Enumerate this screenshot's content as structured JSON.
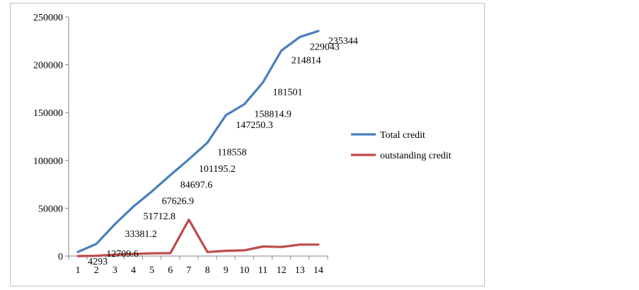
{
  "chart_data": {
    "type": "line",
    "title": "",
    "xlabel": "",
    "ylabel": "",
    "x": [
      "1",
      "2",
      "3",
      "4",
      "5",
      "6",
      "7",
      "8",
      "9",
      "10",
      "11",
      "12",
      "13",
      "14"
    ],
    "ylim": [
      0,
      250000
    ],
    "yticks": [
      "0",
      "50000",
      "100000",
      "150000",
      "200000",
      "250000"
    ],
    "grid": false,
    "legend_position": "right",
    "series": [
      {
        "name": "Total credit",
        "color": "#4a7ebb",
        "values": [
          4293,
          12709.6,
          33381.2,
          51712.8,
          67626.9,
          84697.6,
          101195.2,
          118558,
          147250.3,
          158814.9,
          181501,
          214814,
          229043,
          235344
        ],
        "labels": [
          "4293",
          "12709.6",
          "33381.2",
          "51712.8",
          "67626.9",
          "84697.6",
          "101195.2",
          "118558",
          "147250.3",
          "158814.9",
          "181501",
          "214814",
          "229043",
          "235344"
        ]
      },
      {
        "name": "outstanding credit",
        "color": "#be4b48",
        "values": [
          0,
          300,
          1500,
          2200,
          2800,
          3000,
          38000,
          4200,
          5500,
          6000,
          10000,
          9500,
          12000,
          12000
        ]
      }
    ]
  }
}
